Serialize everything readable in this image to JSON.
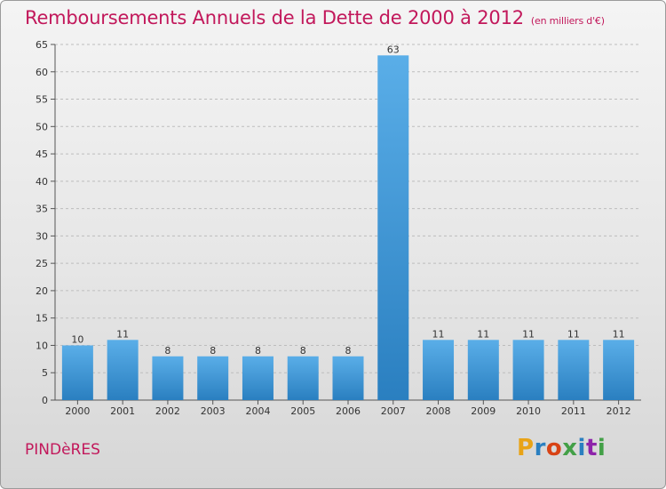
{
  "title": "Remboursements Annuels de la Dette de 2000 à 2012",
  "unit_note": "(en milliers d'€)",
  "commune": "PINDèRES",
  "logo_text": "Proxiti",
  "colors": {
    "title": "#c2185b",
    "bar_top": "#5aaee8",
    "bar_bottom": "#2a7fc0",
    "grid": "#bdbdbd"
  },
  "chart_data": {
    "type": "bar",
    "title": "Remboursements Annuels de la Dette de 2000 à 2012",
    "ylabel": "",
    "xlabel": "",
    "categories": [
      "2000",
      "2001",
      "2002",
      "2003",
      "2004",
      "2005",
      "2006",
      "2007",
      "2008",
      "2009",
      "2010",
      "2011",
      "2012"
    ],
    "values": [
      10,
      11,
      8,
      8,
      8,
      8,
      8,
      63,
      11,
      11,
      11,
      11,
      11
    ],
    "ylim": [
      0,
      65
    ],
    "yticks": [
      0,
      5,
      10,
      15,
      20,
      25,
      30,
      35,
      40,
      45,
      50,
      55,
      60,
      65
    ],
    "grid": true
  }
}
